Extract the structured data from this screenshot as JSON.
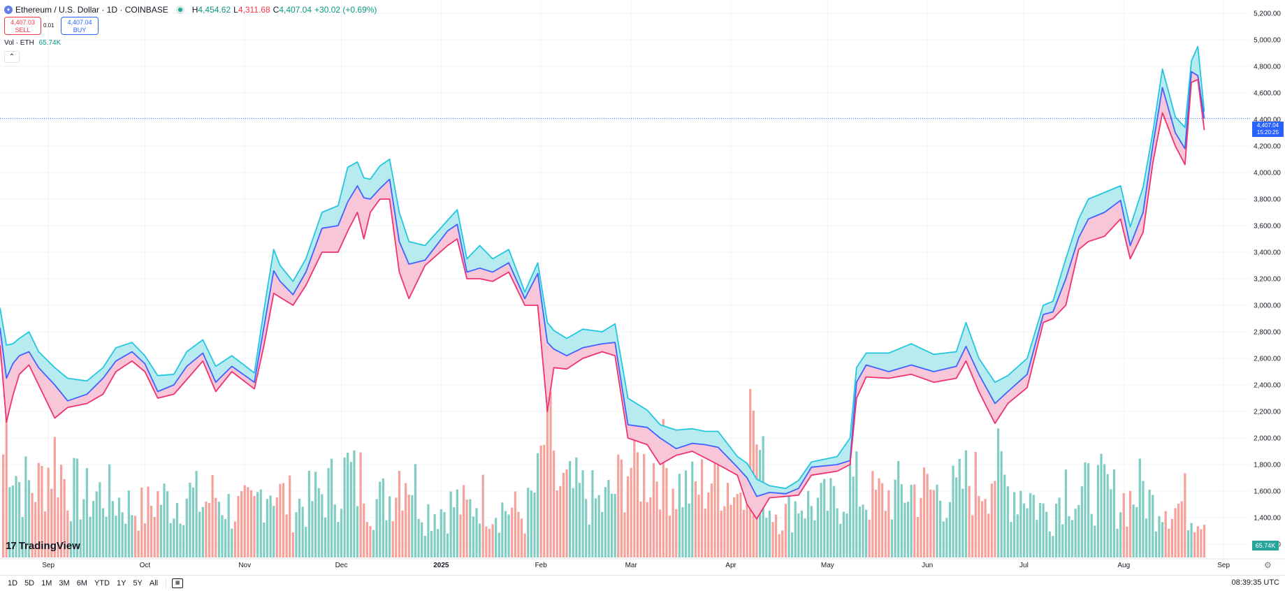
{
  "header": {
    "symbol": "Ethereum / U.S. Dollar · 1D · COINBASE",
    "h_label": "H",
    "h_value": "4,454.62",
    "l_label": "L",
    "l_value": "4,311.68",
    "c_label": "C",
    "c_value": "4,407.04",
    "change": "+30.02 (+0.69%)"
  },
  "trade": {
    "sell_price": "4,407.03",
    "sell_label": "SELL",
    "spread": "0.01",
    "buy_price": "4,407.04",
    "buy_label": "BUY"
  },
  "volume_indicator": {
    "label": "Vol · ETH",
    "value": "65.74K"
  },
  "price_badge": {
    "price": "4,407.04",
    "countdown": "15:20:25"
  },
  "volume_badge": "65.74K",
  "logo": "TradingView",
  "ranges": [
    "1D",
    "5D",
    "1M",
    "3M",
    "6M",
    "YTD",
    "1Y",
    "5Y",
    "All"
  ],
  "clock": "08:39:35 UTC",
  "colors": {
    "high_line": "#22c7de",
    "mid_line": "#3f63ff",
    "low_line": "#f0326d",
    "upper_fill": "#b8ebef",
    "lower_fill": "#f7c6d8",
    "vol_up": "#7fcdc3",
    "vol_down": "#f7a19b",
    "grid": "#f0f3fa"
  },
  "chart_data": {
    "type": "line",
    "title": "",
    "x_tick_labels": [
      "Sep",
      "Oct",
      "Nov",
      "Dec",
      "2025",
      "Feb",
      "Mar",
      "Apr",
      "May",
      "Jun",
      "Jul",
      "Aug",
      "Sep"
    ],
    "y_tick_labels": [
      "1,200.00",
      "1,400.00",
      "1,600.00",
      "1,800.00",
      "2,000.00",
      "2,200.00",
      "2,400.00",
      "2,600.00",
      "2,800.00",
      "3,000.00",
      "3,200.00",
      "3,400.00",
      "3,600.00",
      "3,800.00",
      "4,000.00",
      "4,200.00",
      "4,400.00",
      "4,600.00",
      "4,800.00",
      "5,000.00",
      "5,200.00"
    ],
    "ylim": [
      1100,
      5300
    ],
    "x_range": [
      "2024-08-17",
      "2025-09-09"
    ],
    "grid": true,
    "current_price": 4407.04,
    "series": [
      {
        "name": "",
        "role": "high",
        "x": [
          "2024-08-17",
          "2024-08-19",
          "2024-08-21",
          "2024-08-23",
          "2024-08-26",
          "2024-08-29",
          "2024-09-03",
          "2024-09-07",
          "2024-09-13",
          "2024-09-18",
          "2024-09-22",
          "2024-09-27",
          "2024-10-01",
          "2024-10-05",
          "2024-10-10",
          "2024-10-14",
          "2024-10-19",
          "2024-10-23",
          "2024-10-28",
          "2024-11-04",
          "2024-11-07",
          "2024-11-10",
          "2024-11-12",
          "2024-11-16",
          "2024-11-20",
          "2024-11-25",
          "2024-11-30",
          "2024-12-03",
          "2024-12-06",
          "2024-12-08",
          "2024-12-10",
          "2024-12-13",
          "2024-12-16",
          "2024-12-19",
          "2024-12-22",
          "2024-12-27",
          "2025-01-03",
          "2025-01-06",
          "2025-01-09",
          "2025-01-13",
          "2025-01-17",
          "2025-01-22",
          "2025-01-27",
          "2025-01-31",
          "2025-02-03",
          "2025-02-05",
          "2025-02-09",
          "2025-02-14",
          "2025-02-20",
          "2025-02-24",
          "2025-02-28",
          "2025-03-06",
          "2025-03-10",
          "2025-03-15",
          "2025-03-20",
          "2025-03-24",
          "2025-03-28",
          "2025-04-03",
          "2025-04-06",
          "2025-04-09",
          "2025-04-13",
          "2025-04-18",
          "2025-04-22",
          "2025-04-26",
          "2025-05-04",
          "2025-05-08",
          "2025-05-10",
          "2025-05-13",
          "2025-05-20",
          "2025-05-27",
          "2025-06-03",
          "2025-06-10",
          "2025-06-13",
          "2025-06-17",
          "2025-06-22",
          "2025-06-26",
          "2025-07-02",
          "2025-07-07",
          "2025-07-10",
          "2025-07-14",
          "2025-07-18",
          "2025-07-21",
          "2025-07-26",
          "2025-07-31",
          "2025-08-03",
          "2025-08-07",
          "2025-08-10",
          "2025-08-13",
          "2025-08-17",
          "2025-08-20",
          "2025-08-22",
          "2025-08-24",
          "2025-08-26"
        ],
        "values": [
          2980,
          2700,
          2710,
          2750,
          2800,
          2650,
          2530,
          2450,
          2430,
          2530,
          2680,
          2720,
          2620,
          2470,
          2480,
          2650,
          2740,
          2540,
          2620,
          2490,
          2970,
          3420,
          3300,
          3180,
          3350,
          3700,
          3750,
          4040,
          4080,
          3960,
          3950,
          4050,
          4100,
          3700,
          3480,
          3450,
          3640,
          3720,
          3350,
          3450,
          3350,
          3420,
          3100,
          3320,
          2870,
          2810,
          2750,
          2820,
          2800,
          2860,
          2300,
          2210,
          2100,
          2060,
          2070,
          2050,
          2050,
          1860,
          1810,
          1690,
          1640,
          1620,
          1680,
          1820,
          1860,
          2000,
          2530,
          2640,
          2640,
          2710,
          2630,
          2650,
          2870,
          2600,
          2420,
          2470,
          2600,
          3000,
          3030,
          3350,
          3650,
          3800,
          3850,
          3900,
          3590,
          3890,
          4300,
          4780,
          4420,
          4340,
          4840,
          4950,
          4460
        ],
        "values_note": "estimated from axis"
      },
      {
        "name": "",
        "role": "close",
        "x": [
          "2024-08-17",
          "2024-08-19",
          "2024-08-21",
          "2024-08-23",
          "2024-08-26",
          "2024-08-29",
          "2024-09-03",
          "2024-09-07",
          "2024-09-13",
          "2024-09-18",
          "2024-09-22",
          "2024-09-27",
          "2024-10-01",
          "2024-10-05",
          "2024-10-10",
          "2024-10-14",
          "2024-10-19",
          "2024-10-23",
          "2024-10-28",
          "2024-11-04",
          "2024-11-07",
          "2024-11-10",
          "2024-11-12",
          "2024-11-16",
          "2024-11-20",
          "2024-11-25",
          "2024-11-30",
          "2024-12-03",
          "2024-12-06",
          "2024-12-08",
          "2024-12-10",
          "2024-12-13",
          "2024-12-16",
          "2024-12-19",
          "2024-12-22",
          "2024-12-27",
          "2025-01-03",
          "2025-01-06",
          "2025-01-09",
          "2025-01-13",
          "2025-01-17",
          "2025-01-22",
          "2025-01-27",
          "2025-01-31",
          "2025-02-03",
          "2025-02-05",
          "2025-02-09",
          "2025-02-14",
          "2025-02-20",
          "2025-02-24",
          "2025-02-28",
          "2025-03-06",
          "2025-03-10",
          "2025-03-15",
          "2025-03-20",
          "2025-03-24",
          "2025-03-28",
          "2025-04-03",
          "2025-04-06",
          "2025-04-09",
          "2025-04-13",
          "2025-04-18",
          "2025-04-22",
          "2025-04-26",
          "2025-05-04",
          "2025-05-08",
          "2025-05-10",
          "2025-05-13",
          "2025-05-20",
          "2025-05-27",
          "2025-06-03",
          "2025-06-10",
          "2025-06-13",
          "2025-06-17",
          "2025-06-22",
          "2025-06-26",
          "2025-07-02",
          "2025-07-07",
          "2025-07-10",
          "2025-07-14",
          "2025-07-18",
          "2025-07-21",
          "2025-07-26",
          "2025-07-31",
          "2025-08-03",
          "2025-08-07",
          "2025-08-10",
          "2025-08-13",
          "2025-08-17",
          "2025-08-20",
          "2025-08-22",
          "2025-08-24",
          "2025-08-26"
        ],
        "values": [
          2830,
          2450,
          2560,
          2620,
          2650,
          2530,
          2400,
          2280,
          2330,
          2450,
          2580,
          2650,
          2560,
          2350,
          2400,
          2540,
          2640,
          2420,
          2540,
          2420,
          2840,
          3260,
          3180,
          3080,
          3250,
          3580,
          3600,
          3780,
          3900,
          3810,
          3800,
          3880,
          3950,
          3480,
          3310,
          3340,
          3560,
          3610,
          3250,
          3280,
          3250,
          3320,
          3050,
          3240,
          2720,
          2670,
          2620,
          2680,
          2710,
          2720,
          2100,
          2080,
          2000,
          1920,
          1960,
          1950,
          1930,
          1780,
          1700,
          1560,
          1590,
          1580,
          1620,
          1780,
          1800,
          1830,
          2420,
          2550,
          2500,
          2550,
          2500,
          2540,
          2690,
          2480,
          2260,
          2350,
          2480,
          2930,
          2950,
          3200,
          3510,
          3650,
          3700,
          3790,
          3450,
          3700,
          4200,
          4640,
          4300,
          4180,
          4760,
          4730,
          4407
        ],
        "values_note": "estimated from axis"
      },
      {
        "name": "",
        "role": "low",
        "x": [
          "2024-08-17",
          "2024-08-19",
          "2024-08-21",
          "2024-08-23",
          "2024-08-26",
          "2024-08-29",
          "2024-09-03",
          "2024-09-07",
          "2024-09-13",
          "2024-09-18",
          "2024-09-22",
          "2024-09-27",
          "2024-10-01",
          "2024-10-05",
          "2024-10-10",
          "2024-10-14",
          "2024-10-19",
          "2024-10-23",
          "2024-10-28",
          "2024-11-04",
          "2024-11-07",
          "2024-11-10",
          "2024-11-12",
          "2024-11-16",
          "2024-11-20",
          "2024-11-25",
          "2024-11-30",
          "2024-12-03",
          "2024-12-06",
          "2024-12-08",
          "2024-12-10",
          "2024-12-13",
          "2024-12-16",
          "2024-12-19",
          "2024-12-22",
          "2024-12-27",
          "2025-01-03",
          "2025-01-06",
          "2025-01-09",
          "2025-01-13",
          "2025-01-17",
          "2025-01-22",
          "2025-01-27",
          "2025-01-31",
          "2025-02-03",
          "2025-02-05",
          "2025-02-09",
          "2025-02-14",
          "2025-02-20",
          "2025-02-24",
          "2025-02-28",
          "2025-03-06",
          "2025-03-10",
          "2025-03-15",
          "2025-03-20",
          "2025-03-24",
          "2025-03-28",
          "2025-04-03",
          "2025-04-06",
          "2025-04-09",
          "2025-04-13",
          "2025-04-18",
          "2025-04-22",
          "2025-04-26",
          "2025-05-04",
          "2025-05-08",
          "2025-05-10",
          "2025-05-13",
          "2025-05-20",
          "2025-05-27",
          "2025-06-03",
          "2025-06-10",
          "2025-06-13",
          "2025-06-17",
          "2025-06-22",
          "2025-06-26",
          "2025-07-02",
          "2025-07-07",
          "2025-07-10",
          "2025-07-14",
          "2025-07-18",
          "2025-07-21",
          "2025-07-26",
          "2025-07-31",
          "2025-08-03",
          "2025-08-07",
          "2025-08-10",
          "2025-08-13",
          "2025-08-17",
          "2025-08-20",
          "2025-08-22",
          "2025-08-24",
          "2025-08-26"
        ],
        "values": [
          2700,
          2120,
          2320,
          2480,
          2550,
          2400,
          2150,
          2230,
          2260,
          2330,
          2500,
          2580,
          2500,
          2300,
          2330,
          2440,
          2580,
          2350,
          2500,
          2370,
          2700,
          3090,
          3060,
          3000,
          3150,
          3400,
          3400,
          3560,
          3700,
          3500,
          3700,
          3800,
          3800,
          3250,
          3050,
          3300,
          3450,
          3500,
          3200,
          3200,
          3180,
          3250,
          3000,
          3000,
          2200,
          2530,
          2520,
          2600,
          2650,
          2620,
          2000,
          1950,
          1800,
          1870,
          1900,
          1850,
          1800,
          1720,
          1500,
          1390,
          1550,
          1560,
          1570,
          1720,
          1750,
          1800,
          2300,
          2460,
          2450,
          2480,
          2420,
          2450,
          2580,
          2350,
          2110,
          2260,
          2380,
          2870,
          2900,
          3000,
          3420,
          3480,
          3520,
          3650,
          3350,
          3550,
          4070,
          4450,
          4200,
          4060,
          4680,
          4700,
          4320
        ],
        "values_note": "estimated from axis"
      }
    ],
    "volume": {
      "name": "Vol · ETH",
      "last_value": "65.74K",
      "description": "one bar per day, green when close >= previous close, red otherwise; the heaviest days were early Aug 2024, 3 Feb 2025 and 7 Apr 2025",
      "peaks": [
        {
          "x": "2024-08-05",
          "value": 720000
        },
        {
          "x": "2025-02-03",
          "value": 700000
        },
        {
          "x": "2025-04-07",
          "value": 620000
        }
      ]
    }
  }
}
